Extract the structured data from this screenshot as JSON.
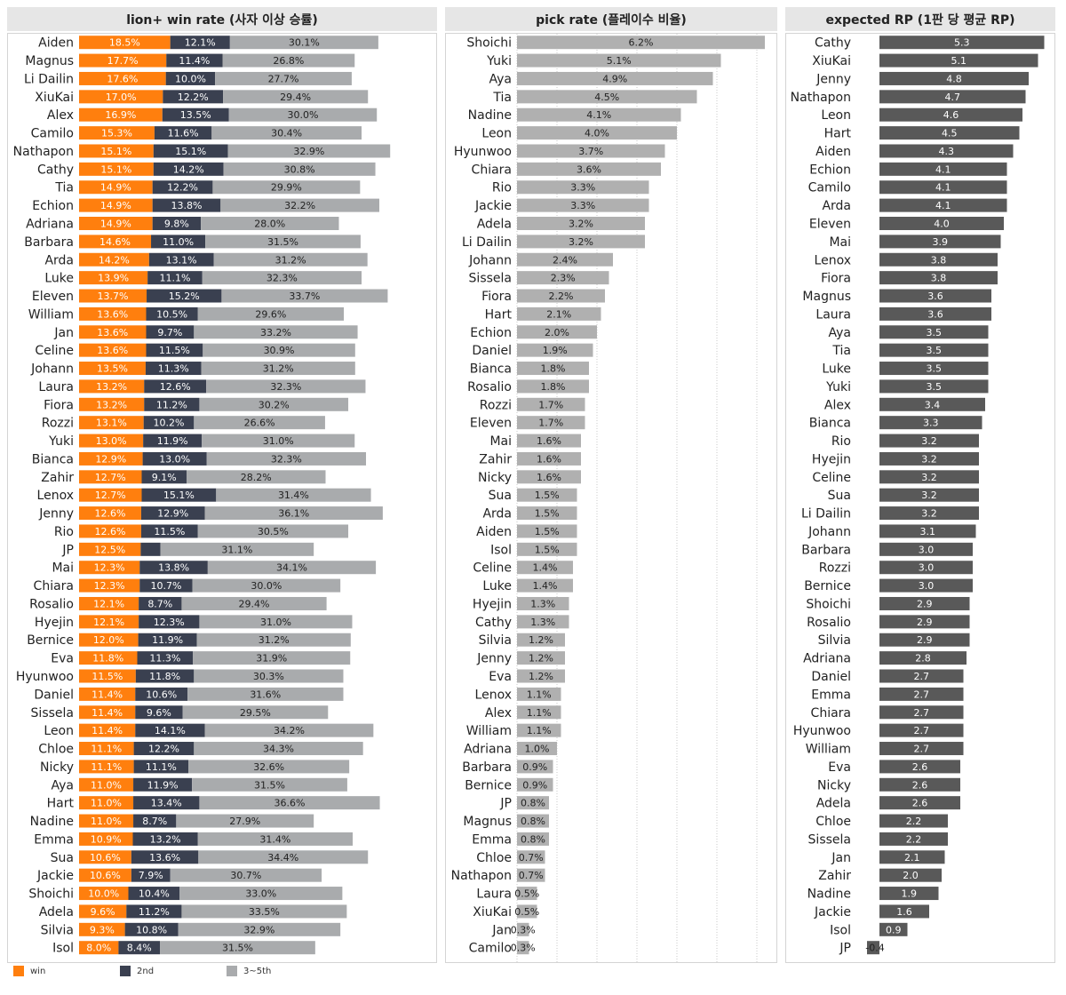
{
  "colors": {
    "win": "#ff7f0e",
    "second": "#3a4050",
    "third_to_fifth": "#a9abad",
    "pick": "#b0b0b0",
    "rp": "#595959",
    "header_bg": "#e6e6e6"
  },
  "legend": {
    "win": "win",
    "second": "2nd",
    "third_to_fifth": "3~5th"
  },
  "chart_data": [
    {
      "type": "bar",
      "stacked": true,
      "orientation": "horizontal",
      "title": "lion+ win rate (사자 이상 승률)",
      "series_names": [
        "win",
        "2nd",
        "3~5th"
      ],
      "rows": [
        {
          "name": "Aiden",
          "win": "18.5%",
          "second": "12.1%",
          "rest": "30.1%"
        },
        {
          "name": "Magnus",
          "win": "17.7%",
          "second": "11.4%",
          "rest": "26.8%"
        },
        {
          "name": "Li Dailin",
          "win": "17.6%",
          "second": "10.0%",
          "rest": "27.7%"
        },
        {
          "name": "XiuKai",
          "win": "17.0%",
          "second": "12.2%",
          "rest": "29.4%"
        },
        {
          "name": "Alex",
          "win": "16.9%",
          "second": "13.5%",
          "rest": "30.0%"
        },
        {
          "name": "Camilo",
          "win": "15.3%",
          "second": "11.6%",
          "rest": "30.4%"
        },
        {
          "name": "Nathapon",
          "win": "15.1%",
          "second": "15.1%",
          "rest": "32.9%"
        },
        {
          "name": "Cathy",
          "win": "15.1%",
          "second": "14.2%",
          "rest": "30.8%"
        },
        {
          "name": "Tia",
          "win": "14.9%",
          "second": "12.2%",
          "rest": "29.9%"
        },
        {
          "name": "Echion",
          "win": "14.9%",
          "second": "13.8%",
          "rest": "32.2%"
        },
        {
          "name": "Adriana",
          "win": "14.9%",
          "second": "9.8%",
          "rest": "28.0%"
        },
        {
          "name": "Barbara",
          "win": "14.6%",
          "second": "11.0%",
          "rest": "31.5%"
        },
        {
          "name": "Arda",
          "win": "14.2%",
          "second": "13.1%",
          "rest": "31.2%"
        },
        {
          "name": "Luke",
          "win": "13.9%",
          "second": "11.1%",
          "rest": "32.3%"
        },
        {
          "name": "Eleven",
          "win": "13.7%",
          "second": "15.2%",
          "rest": "33.7%"
        },
        {
          "name": "William",
          "win": "13.6%",
          "second": "10.5%",
          "rest": "29.6%"
        },
        {
          "name": "Jan",
          "win": "13.6%",
          "second": "9.7%",
          "rest": "33.2%"
        },
        {
          "name": "Celine",
          "win": "13.6%",
          "second": "11.5%",
          "rest": "30.9%"
        },
        {
          "name": "Johann",
          "win": "13.5%",
          "second": "11.3%",
          "rest": "31.2%"
        },
        {
          "name": "Laura",
          "win": "13.2%",
          "second": "12.6%",
          "rest": "32.3%"
        },
        {
          "name": "Fiora",
          "win": "13.2%",
          "second": "11.2%",
          "rest": "30.2%"
        },
        {
          "name": "Rozzi",
          "win": "13.1%",
          "second": "10.2%",
          "rest": "26.6%"
        },
        {
          "name": "Yuki",
          "win": "13.0%",
          "second": "11.9%",
          "rest": "31.0%"
        },
        {
          "name": "Bianca",
          "win": "12.9%",
          "second": "13.0%",
          "rest": "32.3%"
        },
        {
          "name": "Zahir",
          "win": "12.7%",
          "second": "9.1%",
          "rest": "28.2%"
        },
        {
          "name": "Lenox",
          "win": "12.7%",
          "second": "15.1%",
          "rest": "31.4%"
        },
        {
          "name": "Jenny",
          "win": "12.6%",
          "second": "12.9%",
          "rest": "36.1%"
        },
        {
          "name": "Rio",
          "win": "12.6%",
          "second": "11.5%",
          "rest": "30.5%"
        },
        {
          "name": "JP",
          "win": "12.5%",
          "second": "",
          "second_value": 4.0,
          "rest": "31.1%"
        },
        {
          "name": "Mai",
          "win": "12.3%",
          "second": "13.8%",
          "rest": "34.1%"
        },
        {
          "name": "Chiara",
          "win": "12.3%",
          "second": "10.7%",
          "rest": "30.0%"
        },
        {
          "name": "Rosalio",
          "win": "12.1%",
          "second": "8.7%",
          "rest": "29.4%"
        },
        {
          "name": "Hyejin",
          "win": "12.1%",
          "second": "12.3%",
          "rest": "31.0%"
        },
        {
          "name": "Bernice",
          "win": "12.0%",
          "second": "11.9%",
          "rest": "31.2%"
        },
        {
          "name": "Eva",
          "win": "11.8%",
          "second": "11.3%",
          "rest": "31.9%"
        },
        {
          "name": "Hyunwoo",
          "win": "11.5%",
          "second": "11.8%",
          "rest": "30.3%"
        },
        {
          "name": "Daniel",
          "win": "11.4%",
          "second": "10.6%",
          "rest": "31.6%"
        },
        {
          "name": "Sissela",
          "win": "11.4%",
          "second": "9.6%",
          "rest": "29.5%"
        },
        {
          "name": "Leon",
          "win": "11.4%",
          "second": "14.1%",
          "rest": "34.2%"
        },
        {
          "name": "Chloe",
          "win": "11.1%",
          "second": "12.2%",
          "rest": "34.3%"
        },
        {
          "name": "Nicky",
          "win": "11.1%",
          "second": "11.1%",
          "rest": "32.6%"
        },
        {
          "name": "Aya",
          "win": "11.0%",
          "second": "11.9%",
          "rest": "31.5%"
        },
        {
          "name": "Hart",
          "win": "11.0%",
          "second": "13.4%",
          "rest": "36.6%"
        },
        {
          "name": "Nadine",
          "win": "11.0%",
          "second": "8.7%",
          "rest": "27.9%"
        },
        {
          "name": "Emma",
          "win": "10.9%",
          "second": "13.2%",
          "rest": "31.4%"
        },
        {
          "name": "Sua",
          "win": "10.6%",
          "second": "13.6%",
          "rest": "34.4%"
        },
        {
          "name": "Jackie",
          "win": "10.6%",
          "second": "7.9%",
          "rest": "30.7%"
        },
        {
          "name": "Shoichi",
          "win": "10.0%",
          "second": "10.4%",
          "rest": "33.0%"
        },
        {
          "name": "Adela",
          "win": "9.6%",
          "second": "11.2%",
          "rest": "33.5%"
        },
        {
          "name": "Silvia",
          "win": "9.3%",
          "second": "10.8%",
          "rest": "32.9%"
        },
        {
          "name": "Isol",
          "win": "8.0%",
          "second": "8.4%",
          "rest": "31.5%"
        }
      ]
    },
    {
      "type": "bar",
      "orientation": "horizontal",
      "title": "pick rate (플레이수 비율)",
      "rows": [
        {
          "name": "Shoichi",
          "value": "6.2%"
        },
        {
          "name": "Yuki",
          "value": "5.1%"
        },
        {
          "name": "Aya",
          "value": "4.9%"
        },
        {
          "name": "Tia",
          "value": "4.5%"
        },
        {
          "name": "Nadine",
          "value": "4.1%"
        },
        {
          "name": "Leon",
          "value": "4.0%"
        },
        {
          "name": "Hyunwoo",
          "value": "3.7%"
        },
        {
          "name": "Chiara",
          "value": "3.6%"
        },
        {
          "name": "Rio",
          "value": "3.3%"
        },
        {
          "name": "Jackie",
          "value": "3.3%"
        },
        {
          "name": "Adela",
          "value": "3.2%"
        },
        {
          "name": "Li Dailin",
          "value": "3.2%"
        },
        {
          "name": "Johann",
          "value": "2.4%"
        },
        {
          "name": "Sissela",
          "value": "2.3%"
        },
        {
          "name": "Fiora",
          "value": "2.2%"
        },
        {
          "name": "Hart",
          "value": "2.1%"
        },
        {
          "name": "Echion",
          "value": "2.0%"
        },
        {
          "name": "Daniel",
          "value": "1.9%"
        },
        {
          "name": "Bianca",
          "value": "1.8%"
        },
        {
          "name": "Rosalio",
          "value": "1.8%"
        },
        {
          "name": "Rozzi",
          "value": "1.7%"
        },
        {
          "name": "Eleven",
          "value": "1.7%"
        },
        {
          "name": "Mai",
          "value": "1.6%"
        },
        {
          "name": "Zahir",
          "value": "1.6%"
        },
        {
          "name": "Nicky",
          "value": "1.6%"
        },
        {
          "name": "Sua",
          "value": "1.5%"
        },
        {
          "name": "Arda",
          "value": "1.5%"
        },
        {
          "name": "Aiden",
          "value": "1.5%"
        },
        {
          "name": "Isol",
          "value": "1.5%"
        },
        {
          "name": "Celine",
          "value": "1.4%"
        },
        {
          "name": "Luke",
          "value": "1.4%"
        },
        {
          "name": "Hyejin",
          "value": "1.3%"
        },
        {
          "name": "Cathy",
          "value": "1.3%"
        },
        {
          "name": "Silvia",
          "value": "1.2%"
        },
        {
          "name": "Jenny",
          "value": "1.2%"
        },
        {
          "name": "Eva",
          "value": "1.2%"
        },
        {
          "name": "Lenox",
          "value": "1.1%"
        },
        {
          "name": "Alex",
          "value": "1.1%"
        },
        {
          "name": "William",
          "value": "1.1%"
        },
        {
          "name": "Adriana",
          "value": "1.0%"
        },
        {
          "name": "Barbara",
          "value": "0.9%"
        },
        {
          "name": "Bernice",
          "value": "0.9%"
        },
        {
          "name": "JP",
          "value": "0.8%"
        },
        {
          "name": "Magnus",
          "value": "0.8%"
        },
        {
          "name": "Emma",
          "value": "0.8%"
        },
        {
          "name": "Chloe",
          "value": "0.7%"
        },
        {
          "name": "Nathapon",
          "value": "0.7%"
        },
        {
          "name": "Laura",
          "value": "0.5%"
        },
        {
          "name": "XiuKai",
          "value": "0.5%"
        },
        {
          "name": "Jan",
          "value": "0.3%"
        },
        {
          "name": "Camilo",
          "value": "0.3%"
        }
      ],
      "grid": true,
      "xlim": [
        0,
        6.5
      ]
    },
    {
      "type": "bar",
      "orientation": "horizontal",
      "title": "expected RP (1판 당 평균 RP)",
      "rows": [
        {
          "name": "Cathy",
          "value": "5.3"
        },
        {
          "name": "XiuKai",
          "value": "5.1"
        },
        {
          "name": "Jenny",
          "value": "4.8"
        },
        {
          "name": "Nathapon",
          "value": "4.7"
        },
        {
          "name": "Leon",
          "value": "4.6"
        },
        {
          "name": "Hart",
          "value": "4.5"
        },
        {
          "name": "Aiden",
          "value": "4.3"
        },
        {
          "name": "Echion",
          "value": "4.1"
        },
        {
          "name": "Camilo",
          "value": "4.1"
        },
        {
          "name": "Arda",
          "value": "4.1"
        },
        {
          "name": "Eleven",
          "value": "4.0"
        },
        {
          "name": "Mai",
          "value": "3.9"
        },
        {
          "name": "Lenox",
          "value": "3.8"
        },
        {
          "name": "Fiora",
          "value": "3.8"
        },
        {
          "name": "Magnus",
          "value": "3.6"
        },
        {
          "name": "Laura",
          "value": "3.6"
        },
        {
          "name": "Aya",
          "value": "3.5"
        },
        {
          "name": "Tia",
          "value": "3.5"
        },
        {
          "name": "Luke",
          "value": "3.5"
        },
        {
          "name": "Yuki",
          "value": "3.5"
        },
        {
          "name": "Alex",
          "value": "3.4"
        },
        {
          "name": "Bianca",
          "value": "3.3"
        },
        {
          "name": "Rio",
          "value": "3.2"
        },
        {
          "name": "Hyejin",
          "value": "3.2"
        },
        {
          "name": "Celine",
          "value": "3.2"
        },
        {
          "name": "Sua",
          "value": "3.2"
        },
        {
          "name": "Li Dailin",
          "value": "3.2"
        },
        {
          "name": "Johann",
          "value": "3.1"
        },
        {
          "name": "Barbara",
          "value": "3.0"
        },
        {
          "name": "Rozzi",
          "value": "3.0"
        },
        {
          "name": "Bernice",
          "value": "3.0"
        },
        {
          "name": "Shoichi",
          "value": "2.9"
        },
        {
          "name": "Rosalio",
          "value": "2.9"
        },
        {
          "name": "Silvia",
          "value": "2.9"
        },
        {
          "name": "Adriana",
          "value": "2.8"
        },
        {
          "name": "Daniel",
          "value": "2.7"
        },
        {
          "name": "Emma",
          "value": "2.7"
        },
        {
          "name": "Chiara",
          "value": "2.7"
        },
        {
          "name": "Hyunwoo",
          "value": "2.7"
        },
        {
          "name": "William",
          "value": "2.7"
        },
        {
          "name": "Eva",
          "value": "2.6"
        },
        {
          "name": "Nicky",
          "value": "2.6"
        },
        {
          "name": "Adela",
          "value": "2.6"
        },
        {
          "name": "Chloe",
          "value": "2.2"
        },
        {
          "name": "Sissela",
          "value": "2.2"
        },
        {
          "name": "Jan",
          "value": "2.1"
        },
        {
          "name": "Zahir",
          "value": "2.0"
        },
        {
          "name": "Nadine",
          "value": "1.9"
        },
        {
          "name": "Jackie",
          "value": "1.6"
        },
        {
          "name": "Isol",
          "value": "0.9"
        },
        {
          "name": "JP",
          "value": "-0.4"
        }
      ]
    }
  ]
}
